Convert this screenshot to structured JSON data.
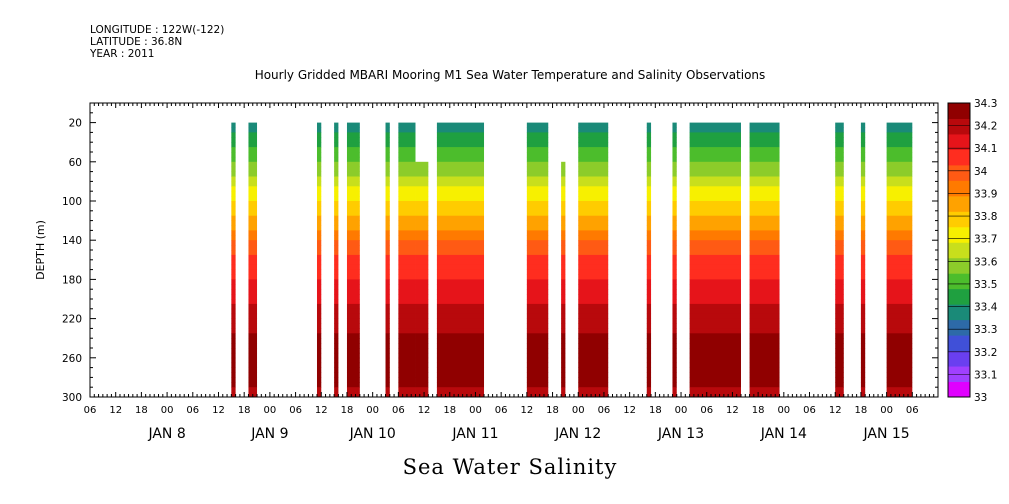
{
  "header": {
    "longitude": "LONGITUDE : 122W(-122)",
    "latitude": "LATITUDE : 36.8N",
    "year": "YEAR : 2011"
  },
  "title": "Hourly Gridded MBARI Mooring M1 Sea Water Temperature and Salinity Observations",
  "bottom_title": "Sea Water Salinity",
  "chart_data": {
    "type": "heatmap",
    "title": "Hourly Gridded MBARI Mooring M1 Sea Water Temperature and Salinity Observations",
    "variable": "Sea Water Salinity",
    "ylabel": "DEPTH (m)",
    "y_inverted": true,
    "ylim": [
      0,
      300
    ],
    "y_ticks": [
      20,
      60,
      100,
      140,
      180,
      220,
      260,
      300
    ],
    "x_hour_ticks": [
      "06",
      "12",
      "18",
      "00",
      "06",
      "12",
      "18",
      "00",
      "06",
      "12",
      "18",
      "00",
      "06",
      "12",
      "18",
      "00",
      "06",
      "12",
      "18",
      "00",
      "06",
      "12",
      "18",
      "00",
      "06",
      "12",
      "18",
      "00",
      "06",
      "12",
      "18",
      "00",
      "06"
    ],
    "x_day_labels": [
      "JAN  8",
      "JAN  9",
      "JAN 10",
      "JAN 11",
      "JAN 12",
      "JAN 13",
      "JAN 14",
      "JAN 15"
    ],
    "colorbar": {
      "levels": [
        33,
        33.1,
        33.2,
        33.3,
        33.4,
        33.5,
        33.6,
        33.7,
        33.8,
        33.9,
        34,
        34.1,
        34.2,
        34.3
      ],
      "labels": [
        "33",
        "33.1",
        "33.2",
        "33.3",
        "33.4",
        "33.5",
        "33.6",
        "33.7",
        "33.8",
        "33.9",
        "34",
        "34.1",
        "34.2",
        "34.3"
      ],
      "colors": [
        "#e000ff",
        "#a040ff",
        "#6a3ff0",
        "#4050d8",
        "#2d6aa8",
        "#1a8a78",
        "#1fa040",
        "#4cbd2c",
        "#8ccc2a",
        "#c8df1c",
        "#f7f000",
        "#ffcc00",
        "#ffa200",
        "#ff7a00",
        "#ff5a14",
        "#ff2d1f",
        "#e6141a",
        "#b8090c",
        "#900000"
      ]
    },
    "data_blocks": [
      {
        "start": "JAN 8 15:00",
        "end": "JAN 8 16:00",
        "top_depth": 20,
        "bottom_depth": 300
      },
      {
        "start": "JAN 8 19:00",
        "end": "JAN 8 21:00",
        "top_depth": 20,
        "bottom_depth": 300
      },
      {
        "start": "JAN 9 11:00",
        "end": "JAN 9 12:00",
        "top_depth": 20,
        "bottom_depth": 300
      },
      {
        "start": "JAN 9 15:00",
        "end": "JAN 9 16:00",
        "top_depth": 20,
        "bottom_depth": 300
      },
      {
        "start": "JAN 9 18:00",
        "end": "JAN 9 21:00",
        "top_depth": 20,
        "bottom_depth": 300
      },
      {
        "start": "JAN 10 03:00",
        "end": "JAN 10 04:00",
        "top_depth": 20,
        "bottom_depth": 300
      },
      {
        "start": "JAN 10 06:00",
        "end": "JAN 10 10:00",
        "top_depth": 20,
        "bottom_depth": 300
      },
      {
        "start": "JAN 10 10:00",
        "end": "JAN 10 13:00",
        "top_depth": 60,
        "bottom_depth": 300
      },
      {
        "start": "JAN 10 15:00",
        "end": "JAN 11 02:00",
        "top_depth": 20,
        "bottom_depth": 300
      },
      {
        "start": "JAN 11 12:00",
        "end": "JAN 11 17:00",
        "top_depth": 20,
        "bottom_depth": 300
      },
      {
        "start": "JAN 11 20:00",
        "end": "JAN 11 21:00",
        "top_depth": 60,
        "bottom_depth": 300
      },
      {
        "start": "JAN 12 00:00",
        "end": "JAN 12 07:00",
        "top_depth": 20,
        "bottom_depth": 300
      },
      {
        "start": "JAN 12 16:00",
        "end": "JAN 12 17:00",
        "top_depth": 20,
        "bottom_depth": 300
      },
      {
        "start": "JAN 12 22:00",
        "end": "JAN 12 23:00",
        "top_depth": 20,
        "bottom_depth": 300
      },
      {
        "start": "JAN 13 02:00",
        "end": "JAN 13 14:00",
        "top_depth": 20,
        "bottom_depth": 300
      },
      {
        "start": "JAN 13 16:00",
        "end": "JAN 13 23:00",
        "top_depth": 20,
        "bottom_depth": 300
      },
      {
        "start": "JAN 14 12:00",
        "end": "JAN 14 14:00",
        "top_depth": 20,
        "bottom_depth": 300
      },
      {
        "start": "JAN 14 18:00",
        "end": "JAN 14 19:00",
        "top_depth": 20,
        "bottom_depth": 300
      },
      {
        "start": "JAN 15 00:00",
        "end": "JAN 15 06:00",
        "top_depth": 20,
        "bottom_depth": 300
      }
    ],
    "profile": {
      "depths": [
        20,
        40,
        60,
        80,
        100,
        120,
        140,
        160,
        180,
        200,
        220,
        240,
        260,
        280,
        300
      ],
      "salinity": [
        33.35,
        33.45,
        33.55,
        33.65,
        33.75,
        33.85,
        33.95,
        34.05,
        34.1,
        34.15,
        34.2,
        34.25,
        34.3,
        34.25,
        34.22
      ]
    }
  }
}
